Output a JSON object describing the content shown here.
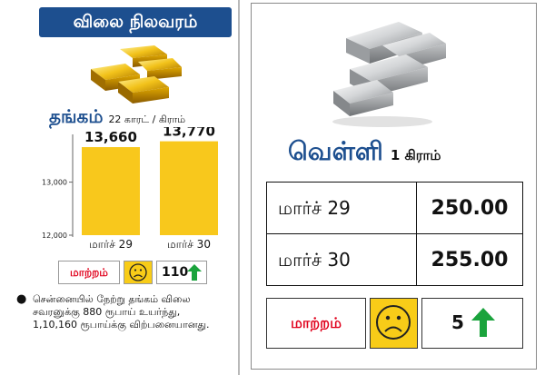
{
  "header": {
    "title": "விலை நிலவரம்"
  },
  "gold": {
    "name": "தங்கம்",
    "unit": "22 காரட் / கிராம்",
    "change_label": "மாற்றம்",
    "change_value": "110",
    "change_direction": "up",
    "note": "சென்னையில் நேற்று தங்கம் விலை சவரனுக்கு 880 ரூபாய் உயர்ந்து, 1,10,160 ரூபாய்க்கு விற்பனையானது."
  },
  "chart_data": {
    "type": "bar",
    "categories": [
      "மார்ச் 29",
      "மார்ச் 30"
    ],
    "values": [
      13660,
      13770
    ],
    "value_labels": [
      "13,660",
      "13,770"
    ],
    "yticks": [
      12000,
      13000
    ],
    "ytick_labels": [
      "12,000",
      "13,000"
    ],
    "ylim": [
      12000,
      13900
    ],
    "bar_color": "#f8c81c"
  },
  "silver": {
    "name": "வெள்ளி",
    "unit": "1 கிராம்",
    "rows": [
      {
        "date": "மார்ச் 29",
        "price": "250.00"
      },
      {
        "date": "மார்ச் 30",
        "price": "255.00"
      }
    ],
    "change_label": "மாற்றம்",
    "change_value": "5",
    "change_direction": "up"
  },
  "colors": {
    "banner": "#1d4f8f",
    "label_red": "#e0001b",
    "face_yellow": "#f8cc18",
    "arrow_green": "#1aa33c"
  },
  "icons": [
    "gold-bars-icon",
    "silver-bars-icon",
    "sad-face-icon",
    "up-arrow-icon"
  ]
}
